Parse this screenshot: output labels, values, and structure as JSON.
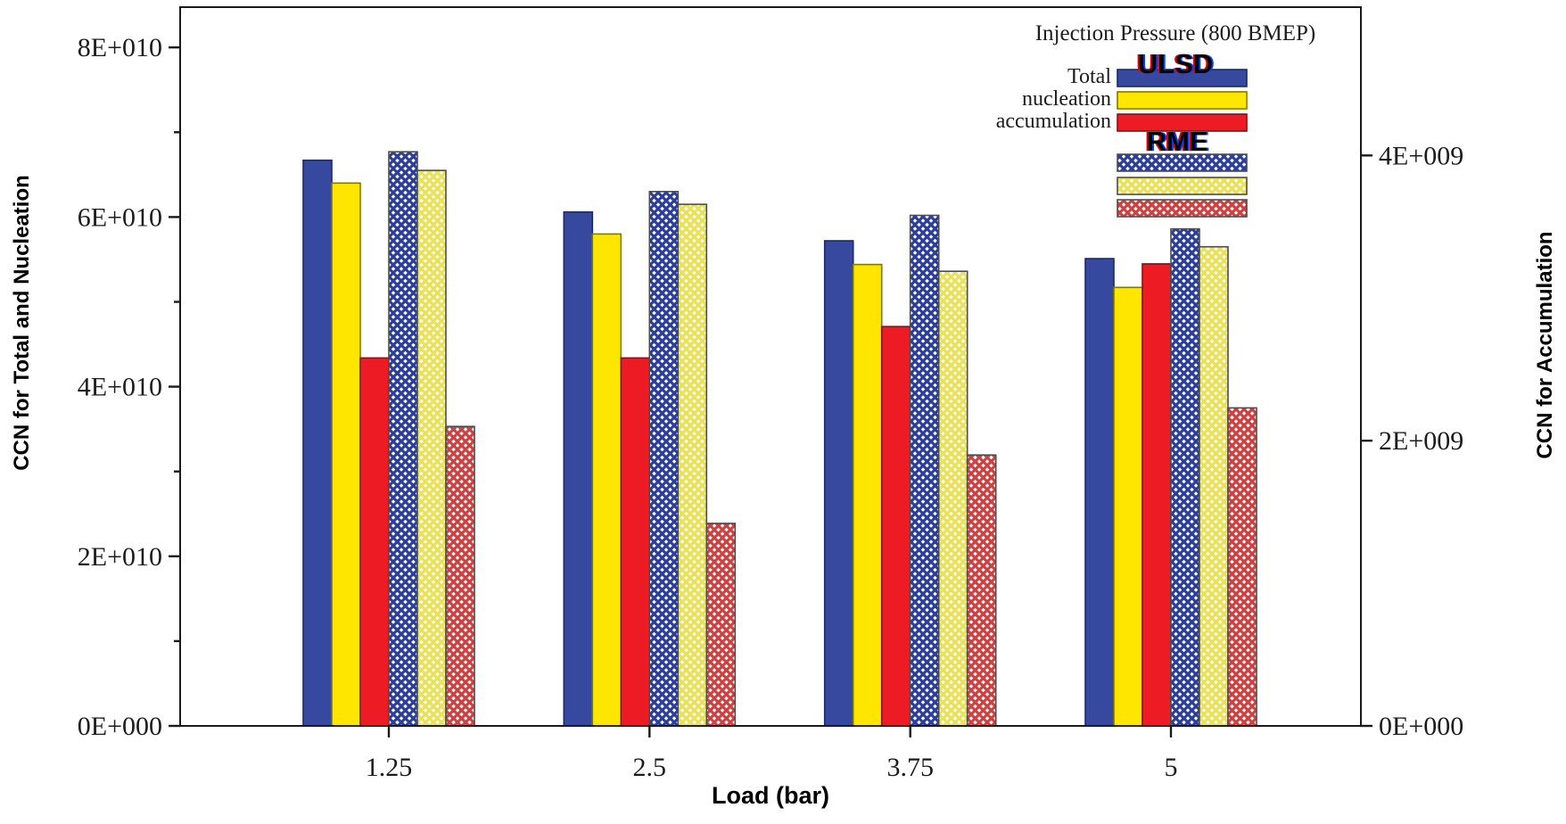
{
  "chart_data": {
    "type": "bar",
    "title": "",
    "xlabel": "Load (bar)",
    "categories": [
      "1.25",
      "2.5",
      "3.75",
      "5"
    ],
    "grid": "off",
    "legend_position": "top-right-inside",
    "left_axis": {
      "title": "CCN for Total and Nucleation",
      "min": 0,
      "max": 84750000000.0,
      "major_ticks": [
        {
          "value": 0,
          "label": "0E+000"
        },
        {
          "value": 20000000000.0,
          "label": "2E+010"
        },
        {
          "value": 40000000000.0,
          "label": "4E+010"
        },
        {
          "value": 60000000000.0,
          "label": "6E+010"
        },
        {
          "value": 80000000000.0,
          "label": "8E+010"
        }
      ],
      "minor_tick_values": [
        10000000000.0,
        30000000000.0,
        50000000000.0,
        70000000000.0
      ]
    },
    "right_axis": {
      "title": "CCN for Accumulation",
      "min": 0,
      "max": 5040000000.0,
      "major_ticks": [
        {
          "value": 0,
          "label": "0E+000"
        },
        {
          "value": 2000000000.0,
          "label": "2E+009"
        },
        {
          "value": 4000000000.0,
          "label": "4E+009"
        }
      ],
      "minor_tick_values": []
    },
    "legend": {
      "title": "Injection Pressure (800 BMEP)",
      "group1_label": "ULSD",
      "group2_label": "RME",
      "row_labels": [
        "Total",
        "nucleation",
        "accumulation"
      ]
    },
    "series": [
      {
        "name": "ULSD Total",
        "fuel": "ULSD",
        "mode": "Total",
        "axis": "left",
        "style": "solid",
        "color": "#37499e",
        "stroke": "#1b2a6b",
        "values": [
          66700000000.0,
          60600000000.0,
          57200000000.0,
          55100000000.0
        ]
      },
      {
        "name": "ULSD nucleation",
        "fuel": "ULSD",
        "mode": "nucleation",
        "axis": "left",
        "style": "solid",
        "color": "#ffe600",
        "stroke": "#7d7a00",
        "values": [
          64000000000.0,
          58000000000.0,
          54400000000.0,
          51700000000.0
        ]
      },
      {
        "name": "ULSD accumulation",
        "fuel": "ULSD",
        "mode": "accumulation",
        "axis": "right",
        "style": "solid",
        "color": "#ed1c24",
        "stroke": "#801418",
        "values": [
          2580000000.0,
          2580000000.0,
          2800000000.0,
          3240000000.0
        ]
      },
      {
        "name": "RME Total",
        "fuel": "RME",
        "mode": "Total",
        "axis": "left",
        "style": "hatch",
        "color": "#2c3e9c",
        "stroke": "#4d4d4d",
        "values": [
          67700000000.0,
          63000000000.0,
          60200000000.0,
          58600000000.0
        ]
      },
      {
        "name": "RME nucleation",
        "fuel": "RME",
        "mode": "nucleation",
        "axis": "left",
        "style": "hatch",
        "color": "#e9e156",
        "stroke": "#4d4d4d",
        "values": [
          65500000000.0,
          61500000000.0,
          53600000000.0,
          56500000000.0
        ]
      },
      {
        "name": "RME accumulation",
        "fuel": "RME",
        "mode": "accumulation",
        "axis": "right",
        "style": "hatch",
        "color": "#cf4040",
        "stroke": "#4d4d4d",
        "values": [
          2100000000.0,
          1420000000.0,
          1900000000.0,
          2230000000.0
        ]
      }
    ]
  }
}
